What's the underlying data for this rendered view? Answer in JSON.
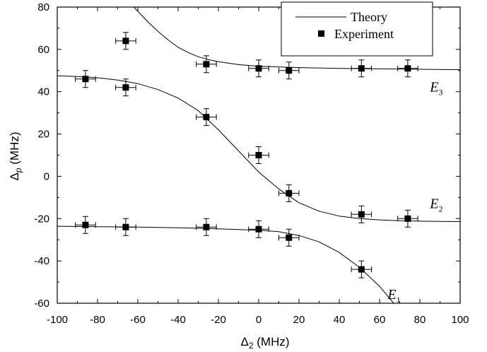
{
  "chart_data": {
    "type": "scatter",
    "xlabel": {
      "symbol": "Δ",
      "sub": "2",
      "unit": " (MHz)"
    },
    "ylabel": {
      "symbol": "Δ",
      "sub": "p",
      "unit": " (MHz)"
    },
    "xlim": [
      -100,
      100
    ],
    "ylim": [
      -60,
      80
    ],
    "xticks": [
      -100,
      -80,
      -60,
      -40,
      -20,
      0,
      20,
      40,
      60,
      80,
      100
    ],
    "yticks": [
      -60,
      -40,
      -20,
      0,
      20,
      40,
      60,
      80
    ],
    "grid": false,
    "legend": {
      "position": "top-right",
      "entries": [
        "Theory",
        "Experiment"
      ]
    },
    "curve_labels": [
      {
        "letter": "E",
        "sub": "3",
        "x": 85,
        "y": 40
      },
      {
        "letter": "E",
        "sub": "2",
        "x": 85,
        "y": -15
      },
      {
        "letter": "E",
        "sub": "1",
        "x": 64,
        "y": -58
      }
    ],
    "series": [
      {
        "name": "Experiment",
        "style": "square-marker",
        "x_err": 5,
        "points": [
          {
            "x": -86,
            "y": 46,
            "yerr": 4
          },
          {
            "x": -66,
            "y": 64,
            "yerr": 4
          },
          {
            "x": -66,
            "y": 42,
            "yerr": 4
          },
          {
            "x": -26,
            "y": 53,
            "yerr": 4
          },
          {
            "x": 0,
            "y": 51,
            "yerr": 4
          },
          {
            "x": 15,
            "y": 50,
            "yerr": 4
          },
          {
            "x": 51,
            "y": 51,
            "yerr": 4
          },
          {
            "x": 74,
            "y": 51,
            "yerr": 4
          },
          {
            "x": -26,
            "y": 28,
            "yerr": 4
          },
          {
            "x": 0,
            "y": 10,
            "yerr": 4
          },
          {
            "x": 15,
            "y": -8,
            "yerr": 4
          },
          {
            "x": 51,
            "y": -18,
            "yerr": 4
          },
          {
            "x": 74,
            "y": -20,
            "yerr": 4
          },
          {
            "x": -86,
            "y": -23,
            "yerr": 4
          },
          {
            "x": -66,
            "y": -24,
            "yerr": 4
          },
          {
            "x": -26,
            "y": -24,
            "yerr": 4
          },
          {
            "x": 0,
            "y": -25,
            "yerr": 4
          },
          {
            "x": 15,
            "y": -29,
            "yerr": 4
          },
          {
            "x": 51,
            "y": -44,
            "yerr": 4
          }
        ]
      },
      {
        "name": "Theory",
        "style": "line",
        "curves": [
          {
            "id": "E3",
            "x": [
              -62,
              -55,
              -50,
              -45,
              -40,
              -35,
              -30,
              -25,
              -20,
              -10,
              0,
              20,
              40,
              60,
              80,
              100
            ],
            "y": [
              80,
              73,
              68.5,
              64.5,
              61,
              58.5,
              56.5,
              55.2,
              54.2,
              52.8,
              52,
              51.4,
              51,
              50.8,
              50.6,
              50.4
            ]
          },
          {
            "id": "E2",
            "x": [
              -100,
              -90,
              -80,
              -70,
              -60,
              -50,
              -40,
              -30,
              -20,
              -10,
              0,
              10,
              20,
              30,
              40,
              50,
              60,
              70,
              80,
              90,
              100
            ],
            "y": [
              47.5,
              47.2,
              46.6,
              45.5,
              43.8,
              41,
              37,
              31,
              22,
              12,
              2,
              -6,
              -12.5,
              -16.5,
              -18.8,
              -20,
              -20.6,
              -21,
              -21.2,
              -21.3,
              -21.4
            ]
          },
          {
            "id": "E1",
            "x": [
              -100,
              -80,
              -60,
              -40,
              -20,
              0,
              10,
              20,
              30,
              40,
              50,
              60,
              67
            ],
            "y": [
              -23.6,
              -23.8,
              -24,
              -24.3,
              -24.8,
              -25.5,
              -26.2,
              -28,
              -31,
              -36,
              -43,
              -52,
              -60
            ]
          }
        ]
      }
    ]
  }
}
